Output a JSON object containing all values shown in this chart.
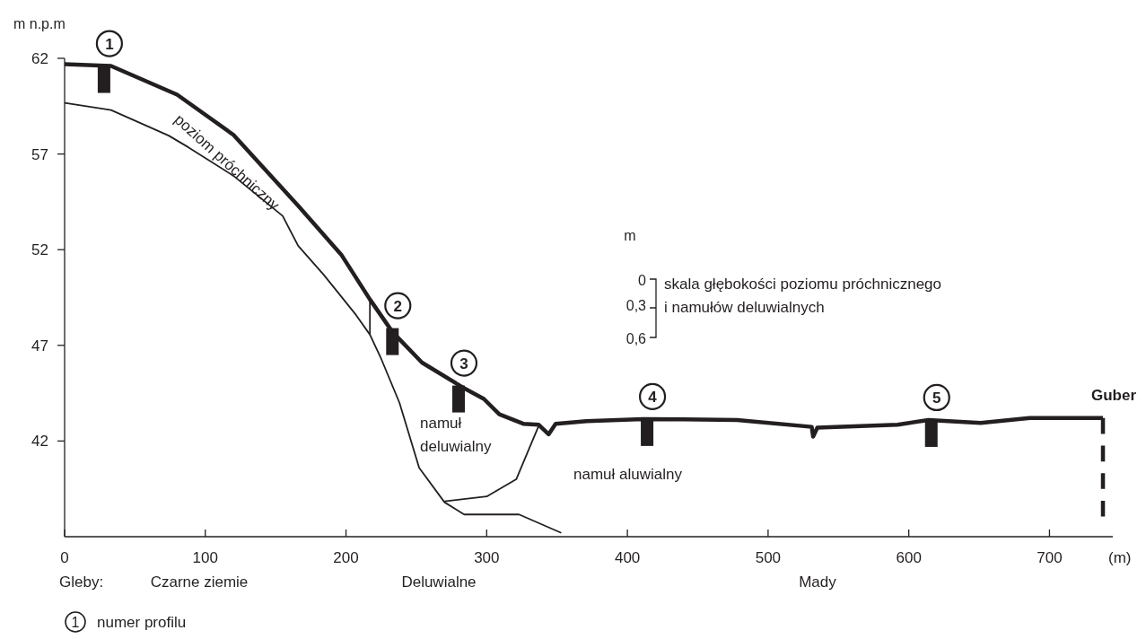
{
  "chart_data": {
    "type": "line",
    "ylabel": "m n.p.m",
    "xlabel": "(m)",
    "xlim": [
      0,
      745
    ],
    "ylim": [
      37,
      62
    ],
    "xticks": [
      0,
      100,
      200,
      300,
      400,
      500,
      600,
      700
    ],
    "yticks": [
      42,
      47,
      52,
      57,
      62
    ],
    "grid": false,
    "marker": "none",
    "series": [
      {
        "color": "#231f20",
        "line_style": "solid",
        "x": [
          0,
          33,
          80,
          120,
          166,
          197,
          217,
          233,
          254,
          283,
          298,
          309,
          326,
          337,
          344,
          349,
          371,
          411,
          478,
          531,
          532,
          535,
          592,
          614,
          651,
          686,
          738
        ],
        "values": [
          61.7,
          61.6,
          60.1,
          58.0,
          54.3,
          51.7,
          49.4,
          47.7,
          46.1,
          44.8,
          44.2,
          43.4,
          42.9,
          42.85,
          42.35,
          42.9,
          43.04,
          43.15,
          43.1,
          42.74,
          42.23,
          42.7,
          42.85,
          43.1,
          42.95,
          43.2,
          43.2
        ]
      },
      {
        "color": "#231f20",
        "line_style": "solid",
        "x": [
          0,
          33,
          74,
          88,
          120,
          155,
          166,
          184,
          207,
          217,
          225,
          238,
          252,
          270,
          284,
          323,
          353
        ],
        "values": [
          59.67,
          59.3,
          57.96,
          57.35,
          55.86,
          53.76,
          52.2,
          50.7,
          48.6,
          47.56,
          46.3,
          44.0,
          40.6,
          38.8,
          38.16,
          38.16,
          37.2
        ]
      },
      {
        "color": "#231f20",
        "line_style": "solid",
        "x": [
          270,
          300,
          321,
          337
        ],
        "values": [
          38.85,
          39.1,
          40.0,
          42.8
        ]
      },
      {
        "color": "#231f20",
        "line_style": "solid",
        "x": [
          217,
          217
        ],
        "values": [
          47.56,
          49.4
        ]
      },
      {
        "color": "#231f20",
        "line_style": "dashed",
        "x": [
          738,
          738
        ],
        "values": [
          43.2,
          38.05
        ]
      }
    ],
    "annotations": [
      "Gleby:",
      "Czarne ziemie",
      "Deluwialne",
      "Mady",
      "poziom próchniczny",
      "namuł\ndeluwialny",
      "namuł aluwialny",
      "Guber",
      "m",
      "0",
      "0,3",
      "0,6",
      "skala głębokości poziomu próchnicznego\ni namułów deluwialnych",
      "1",
      "numer profilu",
      {
        "text": "1",
        "x": 28,
        "y": 61.6
      },
      {
        "text": "2",
        "x": 233,
        "y": 47.9
      },
      {
        "text": "3",
        "x": 280,
        "y": 44.9
      },
      {
        "text": "4",
        "x": 414,
        "y": 43.15
      },
      {
        "text": "5",
        "x": 616,
        "y": 43.1
      }
    ]
  }
}
